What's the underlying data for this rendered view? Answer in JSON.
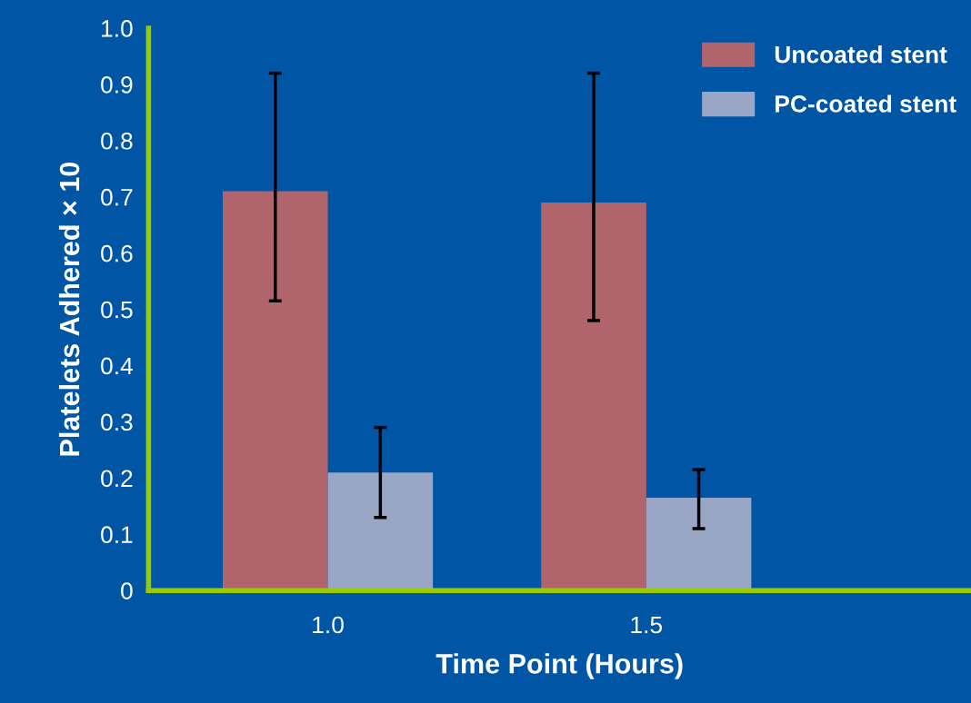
{
  "chart_data": {
    "type": "bar",
    "xlabel": "Time Point (Hours)",
    "ylabel": "Platelets Adhered × 10",
    "categories": [
      "1.0",
      "1.5"
    ],
    "series": [
      {
        "name": "Uncoated stent",
        "color": "#b0646c",
        "values": [
          0.71,
          0.69
        ],
        "errors": [
          [
            0.515,
            0.92
          ],
          [
            0.48,
            0.92
          ]
        ]
      },
      {
        "name": "PC-coated stent",
        "color": "#9aa6c6",
        "values": [
          0.21,
          0.165
        ],
        "errors": [
          [
            0.13,
            0.29
          ],
          [
            0.11,
            0.215
          ]
        ]
      }
    ],
    "ylim": [
      0,
      1.0
    ],
    "yticks": [
      0,
      0.1,
      0.2,
      0.3,
      0.4,
      0.5,
      0.6,
      0.7,
      0.8,
      0.9,
      {
        "value": 1.0,
        "label": "1.0"
      }
    ],
    "grid": false,
    "legend": "top right"
  }
}
